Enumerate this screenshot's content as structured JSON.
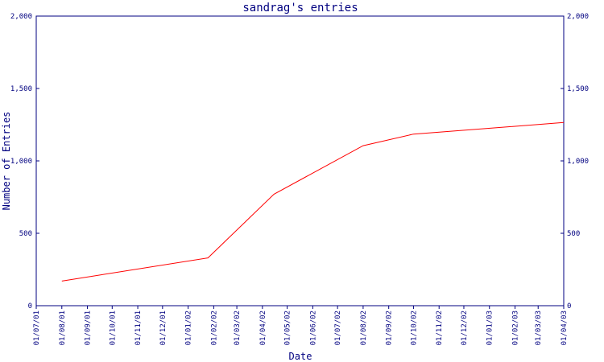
{
  "chart_data": {
    "type": "line",
    "title": "sandrag's entries",
    "xlabel": "Date",
    "ylabel": "Number of Entries",
    "x_ticks": [
      "01/07/01",
      "01/08/01",
      "01/09/01",
      "01/10/01",
      "01/11/01",
      "01/12/01",
      "01/01/02",
      "01/02/02",
      "01/03/02",
      "01/04/02",
      "01/05/02",
      "01/06/02",
      "01/07/02",
      "01/08/02",
      "01/09/02",
      "01/10/02",
      "01/11/02",
      "01/12/02",
      "01/01/03",
      "01/02/03",
      "01/03/03",
      "01/04/03"
    ],
    "y_ticks": [
      "0",
      "500",
      "1,000",
      "1,500",
      "2,000"
    ],
    "ylim": [
      0,
      2000
    ],
    "xlim": [
      "2001-07-01",
      "2003-04-01"
    ],
    "grid": false,
    "series": [
      {
        "x": [
          "2001-08-01",
          "2002-01-25",
          "2002-04-15",
          "2002-08-01",
          "2002-10-01",
          "2003-04-01"
        ],
        "y": [
          170,
          330,
          770,
          1105,
          1185,
          1265
        ]
      }
    ],
    "colors": {
      "axis": "#000080",
      "line": "#ff0000",
      "text": "#000080"
    }
  }
}
